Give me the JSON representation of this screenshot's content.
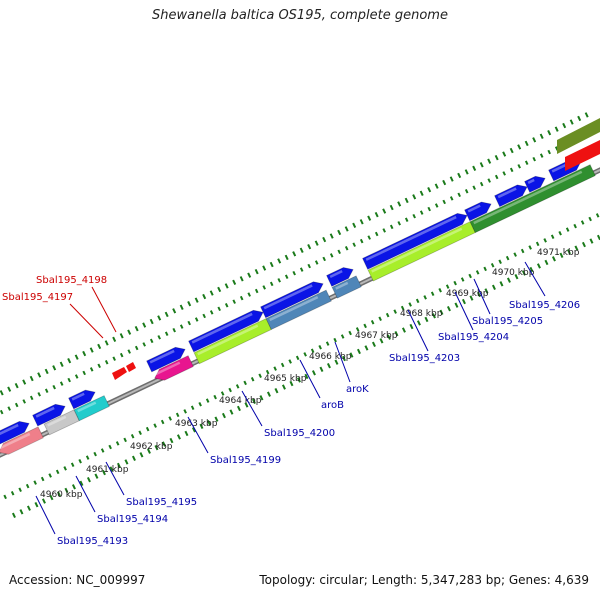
{
  "title": "Shewanella baltica OS195, complete genome",
  "footer": {
    "accession": "Accession: NC_009997",
    "summary": "Topology: circular; Length: 5,347,283 bp; Genes: 4,639"
  },
  "scale_labels": [
    "4960 kbp",
    "4961 kbp",
    "4962 kbp",
    "4963 kbp",
    "4964 kbp",
    "4965 kbp",
    "4966 kbp",
    "4967 kbp",
    "4968 kbp",
    "4969 kbp",
    "4970 kbp",
    "4971 kbp"
  ],
  "gene_labels": [
    {
      "text": "Sbal195_4198",
      "color": "#cc0000"
    },
    {
      "text": "Sbal195_4197",
      "color": "#cc0000"
    },
    {
      "text": "Sbal195_4193",
      "color": "#0000aa"
    },
    {
      "text": "Sbal195_4194",
      "color": "#0000aa"
    },
    {
      "text": "Sbal195_4195",
      "color": "#0000aa"
    },
    {
      "text": "Sbal195_4199",
      "color": "#0000aa"
    },
    {
      "text": "Sbal195_4200",
      "color": "#0000aa"
    },
    {
      "text": "aroB",
      "color": "#0000aa"
    },
    {
      "text": "aroK",
      "color": "#0000aa"
    },
    {
      "text": "Sbal195_4203",
      "color": "#0000aa"
    },
    {
      "text": "Sbal195_4204",
      "color": "#0000aa"
    },
    {
      "text": "Sbal195_4205",
      "color": "#0000aa"
    },
    {
      "text": "Sbal195_4206",
      "color": "#0000aa"
    }
  ],
  "colors": {
    "forward_cds": "#0a14e6",
    "backbone": "#8a8a8a",
    "tick": "#1a7a1a",
    "reverse_red": "#ee1111",
    "olive": "#6b8e23",
    "lime": "#a8ee2a",
    "steelblue": "#4f86b8",
    "magenta": "#e8158f",
    "cyan": "#22cccc",
    "pink": "#ef7f8a",
    "lightgray": "#c8c8c8",
    "darkgreen": "#2f8f2f"
  }
}
